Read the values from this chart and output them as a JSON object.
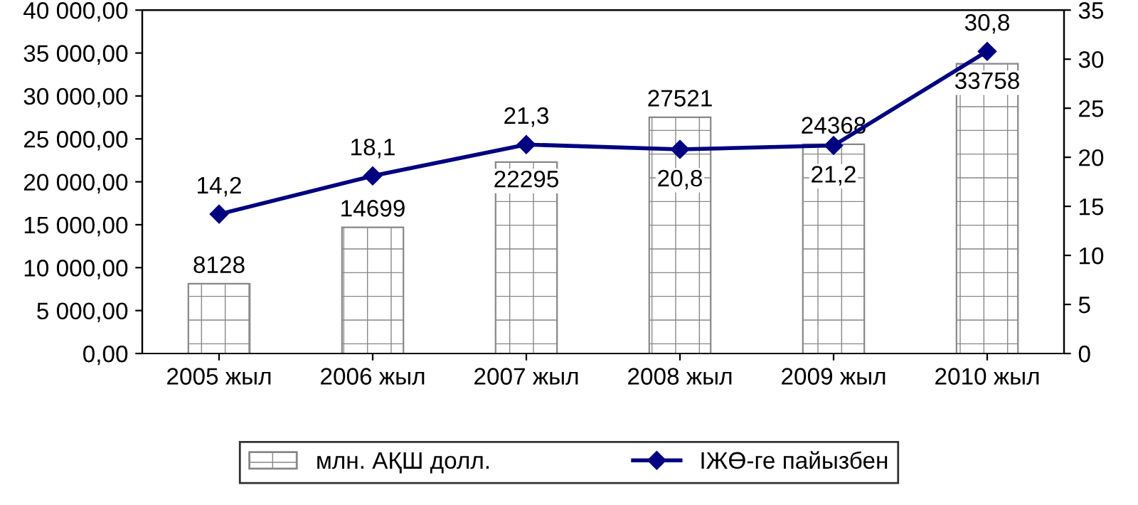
{
  "chart_data": {
    "type": "bar",
    "categories": [
      "2005 жыл",
      "2006 жыл",
      "2007 жыл",
      "2008 жыл",
      "2009 жыл",
      "2010 жыл"
    ],
    "series": [
      {
        "name": "млн. АҚШ долл.",
        "color": "#888888",
        "values": [
          8128,
          14699,
          22295,
          27521,
          24368,
          33758
        ],
        "value_labels": [
          "8128",
          "14699",
          "22295",
          "27521",
          "24368",
          "33758"
        ]
      },
      {
        "name": "ІЖӨ-ге пайызбен",
        "type": "line",
        "axis": "y2",
        "color": "#000080",
        "marker": "diamond",
        "values": [
          14.2,
          18.1,
          21.3,
          20.8,
          21.2,
          30.8
        ],
        "value_labels": [
          "14,2",
          "18,1",
          "21,3",
          "20,8",
          "21,2",
          "30,8"
        ]
      }
    ],
    "ylim": [
      0,
      40000
    ],
    "yticks": [
      {
        "value": 0,
        "label": "0,00"
      },
      {
        "value": 5000,
        "label": "5 000,00"
      },
      {
        "value": 10000,
        "label": "10 000,00"
      },
      {
        "value": 15000,
        "label": "15 000,00"
      },
      {
        "value": 20000,
        "label": "20 000,00"
      },
      {
        "value": 25000,
        "label": "25 000,00"
      },
      {
        "value": 30000,
        "label": "30 000,00"
      },
      {
        "value": 35000,
        "label": "35 000,00"
      },
      {
        "value": 40000,
        "label": "40 000,00"
      }
    ],
    "y2lim": [
      0,
      35
    ],
    "y2ticks": [
      0,
      5,
      10,
      15,
      20,
      25,
      30,
      35
    ],
    "grid": false,
    "legend": "bottom"
  }
}
